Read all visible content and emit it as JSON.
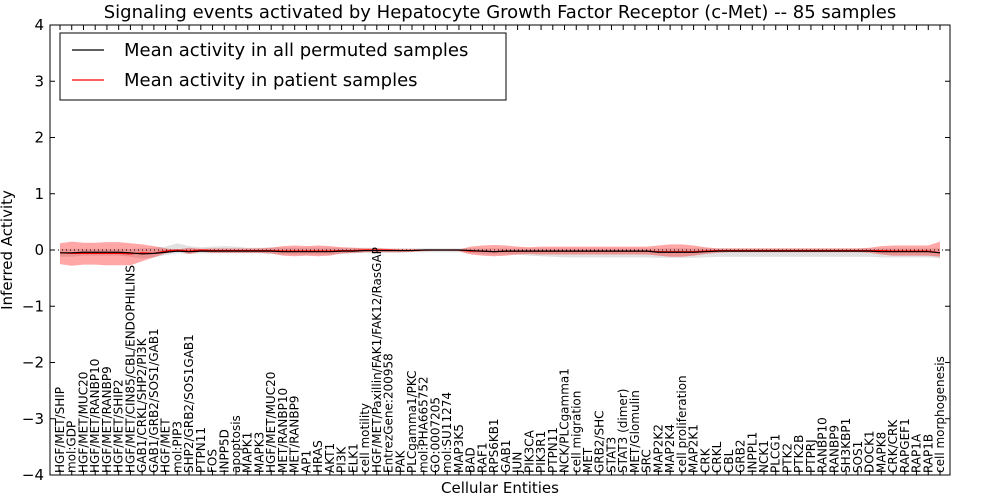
{
  "chart_data": {
    "type": "line",
    "title": "Signaling events activated by Hepatocyte Growth Factor Receptor (c-Met) -- 85 samples",
    "xlabel": "Cellular Entities",
    "ylabel": "Inferred Activity",
    "ylim": [
      -4,
      4
    ],
    "yticks": [
      -4,
      -3,
      -2,
      -1,
      0,
      1,
      2,
      3,
      4
    ],
    "ytick_labels": [
      "−4",
      "−3",
      "−2",
      "−1",
      "0",
      "1",
      "2",
      "3",
      "4"
    ],
    "grid": false,
    "legend_position": "top-left",
    "categories": [
      "HGF/MET/SHIP",
      "mol:GDP",
      "HGF/MET/MUC20",
      "HGF/MET/RANBP10",
      "HGF/MET/RANBP9",
      "HGF/MET/SHIP2",
      "HGF/MET/CIN85/CBL/ENDOPHILINS",
      "GAB1/CRKL/SHP2/PI3K",
      "GAB1/GRB2/SOS1/GAB1",
      "HGF/MET",
      "mol:PIP3",
      "SHP2/GRB2/SOS1GAB1",
      "PTPN11",
      "FOS",
      "INPP5D",
      "apoptosis",
      "MAPK1",
      "MAPK3",
      "HGF/MET/MUC20",
      "MET/RANBP10",
      "MET/RANBP9",
      "AP1",
      "HRAS",
      "AKT1",
      "PI3K",
      "ELK1",
      "cell motility",
      "HGF/MET/Paxillin/FAK1/FAK12/RasGAP",
      "EntrezGene:200958",
      "PAK",
      "PLCgamma1/PKC",
      "mol:PHA665752",
      "GO:0007205",
      "mol:SU11274",
      "MAP3K5",
      "BAD",
      "RAF1",
      "RPS6KB1",
      "GAB1",
      "JUN",
      "PIK3CA",
      "PIK3R1",
      "PTPN11",
      "NCK/PLCgamma1",
      "cell migration",
      "MET",
      "GRB2/SHC",
      "STAT3",
      "STAT3 (dimer)",
      "MET/Glomulin",
      "SRC",
      "MAP2K2",
      "MAP2K4",
      "cell proliferation",
      "MAP2K1",
      "CRK",
      "CRKL",
      "CBL",
      "GRB2",
      "INPPL1",
      "NCK1",
      "PLCG1",
      "PTK2",
      "PTK2B",
      "PTPRJ",
      "RANBP10",
      "RANBP9",
      "SH3KBP1",
      "SOS1",
      "DOCK1",
      "MAPK8",
      "CRK/CRK",
      "RAPGEF1",
      "RAP1A",
      "RAP1B",
      "cell morphogenesis"
    ],
    "series": [
      {
        "name": "Mean activity in all permuted samples",
        "color": "#000000",
        "values": [
          -0.05,
          -0.05,
          -0.04,
          -0.04,
          -0.04,
          -0.04,
          -0.05,
          -0.07,
          -0.06,
          -0.04,
          -0.02,
          -0.03,
          -0.02,
          -0.02,
          -0.02,
          -0.02,
          -0.02,
          -0.02,
          -0.02,
          -0.03,
          -0.03,
          -0.03,
          -0.03,
          -0.03,
          -0.02,
          -0.02,
          -0.01,
          -0.01,
          -0.01,
          -0.01,
          -0.01,
          0,
          0,
          0,
          0,
          -0.01,
          -0.02,
          -0.03,
          -0.02,
          -0.02,
          -0.02,
          -0.02,
          -0.02,
          -0.02,
          -0.02,
          -0.02,
          -0.02,
          -0.02,
          -0.02,
          -0.02,
          -0.02,
          -0.04,
          -0.04,
          -0.04,
          -0.04,
          -0.03,
          -0.02,
          -0.02,
          -0.02,
          -0.02,
          -0.02,
          -0.02,
          -0.02,
          -0.02,
          -0.02,
          -0.02,
          -0.02,
          -0.02,
          -0.02,
          -0.02,
          -0.03,
          -0.03,
          -0.03,
          -0.03,
          -0.03,
          -0.05
        ],
        "band_low": [
          -0.12,
          -0.12,
          -0.1,
          -0.1,
          -0.1,
          -0.1,
          -0.12,
          -0.15,
          -0.13,
          -0.09,
          -0.06,
          -0.07,
          -0.06,
          -0.06,
          -0.06,
          -0.06,
          -0.06,
          -0.06,
          -0.07,
          -0.08,
          -0.08,
          -0.08,
          -0.08,
          -0.08,
          -0.07,
          -0.06,
          -0.05,
          -0.05,
          -0.05,
          -0.05,
          -0.04,
          -0.04,
          -0.04,
          -0.04,
          -0.04,
          -0.05,
          -0.07,
          -0.08,
          -0.07,
          -0.08,
          -0.1,
          -0.11,
          -0.12,
          -0.13,
          -0.13,
          -0.13,
          -0.13,
          -0.13,
          -0.13,
          -0.13,
          -0.13,
          -0.14,
          -0.14,
          -0.14,
          -0.14,
          -0.13,
          -0.12,
          -0.12,
          -0.12,
          -0.12,
          -0.12,
          -0.12,
          -0.12,
          -0.12,
          -0.12,
          -0.12,
          -0.12,
          -0.12,
          -0.12,
          -0.12,
          -0.13,
          -0.13,
          -0.13,
          -0.13,
          -0.13,
          -0.15
        ],
        "band_high": [
          0.02,
          0.02,
          0.02,
          0.02,
          0.02,
          0.02,
          0.02,
          0.03,
          0.04,
          0.06,
          0.12,
          0.07,
          0.05,
          0.06,
          0.07,
          0.06,
          0.04,
          0.04,
          0.05,
          0.04,
          0.04,
          0.04,
          0.04,
          0.04,
          0.04,
          0.04,
          0.04,
          0.04,
          0.03,
          0.03,
          0.03,
          0.03,
          0.03,
          0.03,
          0.03,
          0.03,
          0.03,
          0.03,
          0.03,
          0.03,
          0.03,
          0.03,
          0.03,
          0.03,
          0.03,
          0.03,
          0.03,
          0.03,
          0.03,
          0.03,
          0.03,
          0.03,
          0.03,
          0.03,
          0.03,
          0.03,
          0.03,
          0.03,
          0.03,
          0.03,
          0.03,
          0.03,
          0.03,
          0.03,
          0.03,
          0.03,
          0.03,
          0.03,
          0.03,
          0.03,
          0.03,
          0.03,
          0.03,
          0.03,
          0.03,
          0.03
        ]
      },
      {
        "name": "Mean activity in patient samples",
        "color": "#ff0000",
        "values": [
          -0.05,
          -0.06,
          -0.06,
          -0.06,
          -0.06,
          -0.06,
          -0.07,
          -0.05,
          -0.06,
          -0.02,
          0,
          -0.02,
          0,
          -0.01,
          -0.01,
          -0.01,
          -0.01,
          -0.01,
          -0.01,
          -0.02,
          -0.02,
          -0.02,
          -0.02,
          -0.02,
          -0.01,
          -0.01,
          0,
          0,
          0,
          -0.01,
          -0.01,
          0,
          0,
          0,
          0,
          -0.02,
          -0.02,
          -0.03,
          -0.02,
          -0.02,
          -0.02,
          -0.02,
          -0.02,
          -0.02,
          -0.02,
          -0.02,
          -0.02,
          -0.02,
          -0.02,
          -0.02,
          -0.02,
          -0.03,
          -0.03,
          -0.03,
          -0.03,
          -0.02,
          -0.01,
          -0.01,
          -0.01,
          -0.01,
          -0.01,
          -0.01,
          -0.01,
          -0.01,
          -0.01,
          -0.01,
          -0.01,
          -0.01,
          -0.01,
          -0.01,
          -0.01,
          -0.02,
          -0.02,
          -0.02,
          -0.02,
          -0.05
        ],
        "band_low": [
          -0.25,
          -0.28,
          -0.26,
          -0.26,
          -0.27,
          -0.27,
          -0.27,
          -0.2,
          -0.13,
          -0.06,
          -0.01,
          -0.07,
          -0.03,
          -0.05,
          -0.05,
          -0.05,
          -0.05,
          -0.05,
          -0.06,
          -0.1,
          -0.11,
          -0.1,
          -0.11,
          -0.1,
          -0.06,
          -0.05,
          -0.04,
          -0.04,
          -0.04,
          -0.04,
          -0.03,
          -0.02,
          -0.01,
          -0.01,
          -0.02,
          -0.08,
          -0.1,
          -0.11,
          -0.1,
          -0.08,
          -0.07,
          -0.08,
          -0.08,
          -0.08,
          -0.08,
          -0.08,
          -0.08,
          -0.08,
          -0.08,
          -0.08,
          -0.08,
          -0.1,
          -0.12,
          -0.12,
          -0.1,
          -0.07,
          -0.05,
          -0.04,
          -0.04,
          -0.04,
          -0.04,
          -0.04,
          -0.04,
          -0.04,
          -0.04,
          -0.04,
          -0.04,
          -0.04,
          -0.04,
          -0.05,
          -0.08,
          -0.1,
          -0.1,
          -0.1,
          -0.1,
          -0.12
        ],
        "band_high": [
          0.12,
          0.15,
          0.13,
          0.13,
          0.14,
          0.14,
          0.12,
          0.1,
          0.07,
          0.03,
          0.01,
          0.04,
          0.02,
          0.03,
          0.03,
          0.03,
          0.03,
          0.03,
          0.04,
          0.07,
          0.08,
          0.07,
          0.08,
          0.07,
          0.05,
          0.04,
          0.03,
          0.03,
          0.02,
          0.02,
          0.02,
          0.01,
          0.01,
          0.01,
          0.01,
          0.06,
          0.08,
          0.09,
          0.08,
          0.06,
          0.05,
          0.06,
          0.06,
          0.06,
          0.06,
          0.06,
          0.06,
          0.06,
          0.06,
          0.06,
          0.06,
          0.08,
          0.1,
          0.1,
          0.08,
          0.05,
          0.03,
          0.03,
          0.03,
          0.03,
          0.03,
          0.03,
          0.03,
          0.03,
          0.03,
          0.03,
          0.03,
          0.03,
          0.03,
          0.04,
          0.07,
          0.08,
          0.08,
          0.08,
          0.08,
          0.15
        ]
      }
    ]
  }
}
